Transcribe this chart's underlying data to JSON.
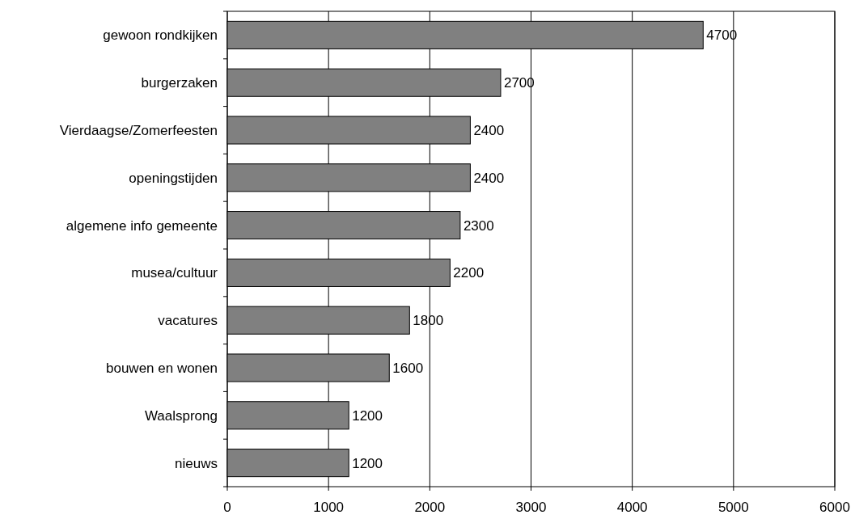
{
  "chart_data": {
    "type": "bar",
    "orientation": "horizontal",
    "categories": [
      "gewoon rondkijken",
      "burgerzaken",
      "Vierdaagse/Zomerfeesten",
      "openingstijden",
      "algemene info gemeente",
      "musea/cultuur",
      "vacatures",
      "bouwen en wonen",
      "Waalsprong",
      "nieuws"
    ],
    "values": [
      4700,
      2700,
      2400,
      2400,
      2300,
      2200,
      1800,
      1600,
      1200,
      1200
    ],
    "color": "#808080",
    "xlim": [
      0,
      6000
    ],
    "xticks": [
      0,
      1000,
      2000,
      3000,
      4000,
      5000,
      6000
    ],
    "grid": "x",
    "data_labels": true
  }
}
